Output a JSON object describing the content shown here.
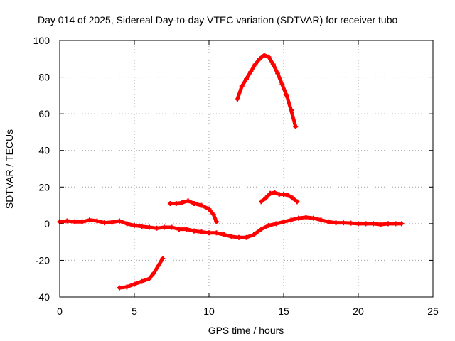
{
  "chart_data": {
    "type": "scatter",
    "title": "Day 014 of 2025, Sidereal Day-to-day VTEC variation (SDTVAR) for receiver tubo",
    "xlabel": "GPS time / hours",
    "ylabel": "SDTVAR / TECUs",
    "xlim": [
      0,
      25
    ],
    "ylim": [
      -40,
      100
    ],
    "xticks": [
      0,
      5,
      10,
      15,
      20,
      25
    ],
    "yticks": [
      -40,
      -20,
      0,
      20,
      40,
      60,
      80,
      100
    ],
    "grid": true,
    "marker": "plus",
    "color": "#ff0000",
    "series": [
      {
        "name": "arc-baseline-1",
        "x": [
          0,
          0.5,
          1,
          1.5,
          2,
          2.5,
          3,
          3.5,
          4,
          4.5,
          5,
          5.5,
          6,
          6.5,
          7,
          7.5,
          8,
          8.5,
          9,
          9.5,
          10,
          10.5,
          11,
          11.5,
          12,
          12.5,
          13,
          13.5,
          14,
          14.5,
          15,
          15.5,
          16,
          16.5,
          17,
          17.5,
          18,
          18.5,
          19,
          19.5,
          20,
          20.5,
          21,
          21.5,
          22,
          22.5,
          22.9
        ],
        "y": [
          1,
          1.5,
          1,
          1,
          2,
          1.5,
          0.5,
          0.8,
          1.5,
          0,
          -1,
          -1.5,
          -2,
          -2.5,
          -2,
          -2,
          -3,
          -3,
          -4,
          -4.5,
          -5,
          -5,
          -6,
          -7,
          -7.5,
          -7.5,
          -6,
          -3,
          -1,
          0,
          1,
          2,
          3,
          3.5,
          3,
          2,
          1,
          0.5,
          0.5,
          0.3,
          0,
          0,
          0,
          -0.5,
          0,
          0,
          0
        ]
      },
      {
        "name": "arc-negative",
        "x": [
          4.0,
          4.5,
          5.0,
          5.5,
          6.0,
          6.3,
          6.6,
          6.9
        ],
        "y": [
          -35,
          -34.5,
          -33,
          -31.5,
          -30,
          -27,
          -23,
          -19
        ]
      },
      {
        "name": "arc-positive-low",
        "x": [
          7.4,
          7.8,
          8.2,
          8.6,
          9.0,
          9.5,
          10.0,
          10.3,
          10.5
        ],
        "y": [
          11,
          11,
          11.5,
          12.5,
          11,
          10,
          8,
          5,
          1
        ]
      },
      {
        "name": "arc-peak",
        "x": [
          11.9,
          12.2,
          12.5,
          12.8,
          13.1,
          13.4,
          13.7,
          14.0,
          14.3,
          14.6,
          14.9,
          15.2,
          15.5,
          15.8
        ],
        "y": [
          68,
          75,
          79,
          83,
          87,
          90,
          92,
          91,
          87,
          82,
          76,
          70,
          62,
          53
        ]
      },
      {
        "name": "arc-positive-mid",
        "x": [
          13.5,
          13.8,
          14.1,
          14.4,
          14.7,
          15.0,
          15.3,
          15.6,
          15.9
        ],
        "y": [
          12,
          14,
          16.5,
          17,
          16,
          16,
          15.5,
          14,
          12
        ]
      }
    ]
  }
}
